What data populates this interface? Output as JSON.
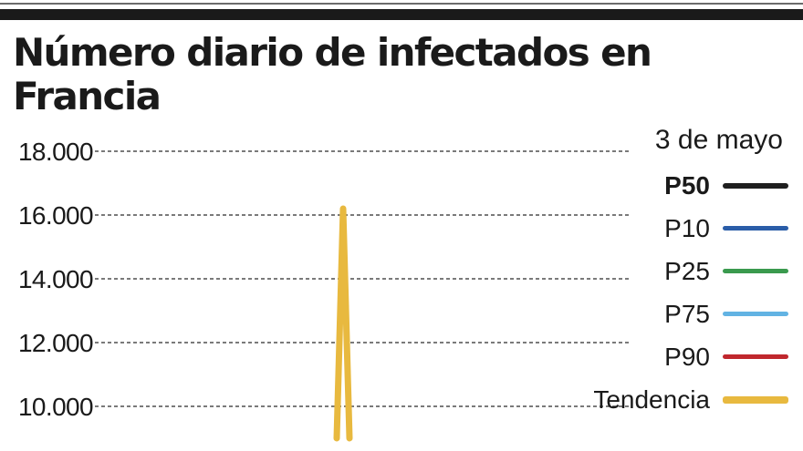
{
  "chart_data": {
    "type": "line",
    "title": "Número diario de infectados en Francia",
    "yticks": [
      "10.000",
      "12.000",
      "14.000",
      "16.000",
      "18.000"
    ],
    "ylim": [
      9000,
      18000
    ],
    "grid": true,
    "legend_title": "3 de mayo",
    "legend_placement": "right",
    "legend": [
      {
        "name": "P50",
        "color": "#1f1f1f",
        "bold": true
      },
      {
        "name": "P10",
        "color": "#2a5da8",
        "bold": false
      },
      {
        "name": "P25",
        "color": "#3a9a4e",
        "bold": false
      },
      {
        "name": "P75",
        "color": "#62b3e3",
        "bold": false
      },
      {
        "name": "P90",
        "color": "#c0272d",
        "bold": false
      },
      {
        "name": "Tendencia",
        "color": "#e8b93f",
        "bold": false
      }
    ],
    "series": [
      {
        "name": "Tendencia",
        "color": "#e8b93f",
        "points": [
          [
            0,
            9000
          ],
          [
            1,
            16200
          ],
          [
            2,
            9000
          ]
        ]
      }
    ]
  }
}
